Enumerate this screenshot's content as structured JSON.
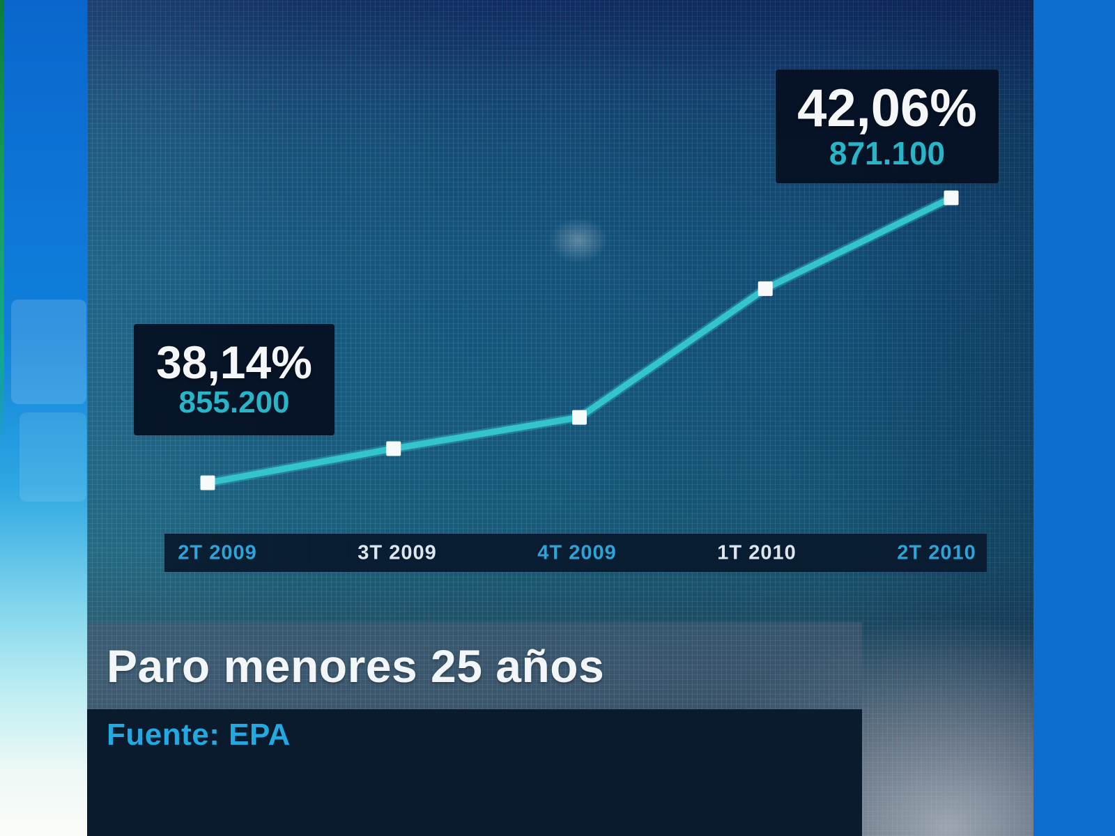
{
  "chart_data": {
    "type": "line",
    "title": "Paro menores 25 años",
    "source_label": "Fuente: EPA",
    "categories": [
      "2T 2009",
      "3T 2009",
      "4T 2009",
      "1T 2010",
      "2T 2010"
    ],
    "series": [
      {
        "name": "Paro menores 25 años",
        "unit": "%",
        "values": [
          38.14,
          38.61,
          39.04,
          40.81,
          42.06
        ]
      }
    ],
    "annotated_points": [
      {
        "category": "2T 2009",
        "percent_label": "38,14%",
        "count_label": "855.200"
      },
      {
        "category": "2T 2010",
        "percent_label": "42,06%",
        "count_label": "871.100"
      }
    ],
    "axis_label_colors": [
      "cyan",
      "white",
      "cyan",
      "white",
      "cyan"
    ],
    "legend": "none",
    "grid": "fine mesh LED-wall backdrop",
    "colors": {
      "line": "#34c4cc",
      "marker": "#f6fafb",
      "percent_text": "#f4f6f8",
      "count_text": "#29b5c8",
      "axis_cyan": "#2da4d8",
      "axis_white": "#dde6ec",
      "axis_band_bg": "#081a2e",
      "callout_bg": "#061224",
      "title_band_bg": "#42566b",
      "source_band_bg": "#0a1b2e",
      "source_text": "#22a9e2"
    }
  },
  "callouts": {
    "start": {
      "percent": "38,14%",
      "count": "855.200"
    },
    "end": {
      "percent": "42,06%",
      "count": "871.100"
    }
  },
  "footer": {
    "title": "Paro menores 25 años",
    "source": "Fuente: EPA"
  }
}
